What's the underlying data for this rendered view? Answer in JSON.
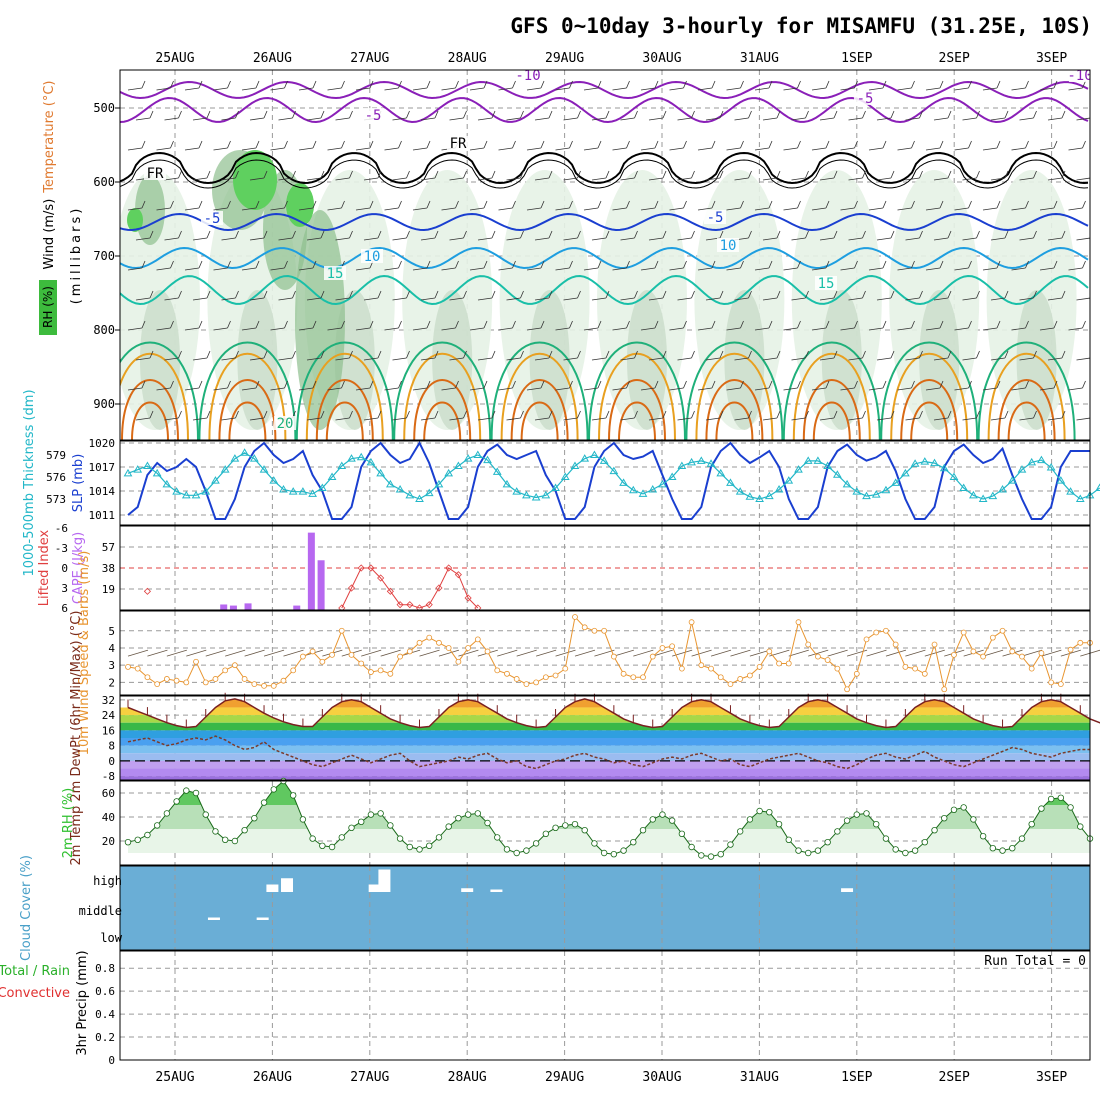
{
  "title": "GFS 0~10day 3-hourly for MISAMFU (31.25E, 10S)",
  "colors": {
    "purple": "#8a1fb8",
    "black": "#000000",
    "blue_dark": "#1a3fd0",
    "blue_light": "#1e9ee0",
    "teal": "#19bfa8",
    "green": "#1fb07a",
    "orange": "#e8a020",
    "orange_dark": "#d96a15",
    "cyan": "#22b7c8",
    "cape": "#b768f0",
    "li": "#e04040",
    "wind": "#e89530",
    "rh": "#30c030",
    "cloud": "#6aaed6",
    "grid": "#9a9a9a"
  },
  "chart_data": {
    "type": "meteogram",
    "x_labels": [
      "25AUG",
      "26AUG",
      "27AUG",
      "28AUG",
      "29AUG",
      "30AUG",
      "31AUG",
      "1SEP",
      "2SEP",
      "3SEP"
    ],
    "panels": [
      {
        "id": "upper",
        "type": "contour",
        "ylabel": "(millibars)",
        "side_labels": [
          "Wind (m/s)",
          "Temperature (°C)",
          "RH (%)"
        ],
        "y_ticks": [
          "500",
          "600",
          "700",
          "800",
          "900"
        ],
        "contour_labels": [
          "-10",
          "-5",
          "-5",
          "FR",
          "FR",
          "-5",
          "-5",
          "10",
          "10",
          "15",
          "15",
          "20",
          "-10"
        ]
      },
      {
        "id": "thickness_slp",
        "type": "line",
        "ylabel_left": "1000-500mb Thickness (dm)",
        "ylabel_right": "SLP (mb)",
        "y_ticks_left": [
          "579",
          "576",
          "573"
        ],
        "y_ticks_right": [
          "1020",
          "1017",
          "1014",
          "1011"
        ],
        "series": [
          {
            "name": "SLP",
            "values": [
              1011,
              1012,
              1016,
              1017.5,
              1016.5,
              1017,
              1018,
              1017,
              1014,
              1010.5,
              1010.5,
              1013,
              1017,
              1019,
              1020,
              1018.5,
              1017.5,
              1018,
              1019,
              1016,
              1014,
              1010.5,
              1010.5,
              1012,
              1017,
              1019,
              1020,
              1018.5,
              1017.5,
              1018,
              1020,
              1017.5,
              1014,
              1010.5,
              1010.5,
              1012,
              1017,
              1019,
              1019.8,
              1018.5,
              1018,
              1018.5,
              1019,
              1016,
              1014,
              1010.5,
              1010.5,
              1012,
              1017,
              1019,
              1020,
              1018.5,
              1018,
              1018.3,
              1019,
              1016,
              1013,
              1010.5,
              1010.5,
              1012,
              1017,
              1019,
              1020,
              1018.5,
              1017.5,
              1018.2,
              1019,
              1017,
              1013,
              1010.5,
              1010.5,
              1012,
              1017,
              1019,
              1019.8,
              1018.5,
              1017.8,
              1018.2,
              1019,
              1016.5,
              1013,
              1010.5,
              1010.5,
              1012,
              1017,
              1019,
              1019.8,
              1018.5,
              1017.5,
              1018,
              1019.3,
              1016,
              1013,
              1010.5,
              1010.5,
              1012,
              1017,
              1019,
              1019,
              1019
            ]
          },
          {
            "name": "Thickness",
            "values": [
              576.5,
              577,
              577.5,
              576.5,
              575,
              574,
              573.5,
              573.5,
              574,
              575.5,
              577,
              578.5,
              579.3,
              578.5,
              577,
              575.5,
              574.3,
              574,
              574,
              573.7,
              574.5,
              576,
              577.5,
              578.5,
              578.7,
              578,
              576.5,
              575,
              574.3,
              573.5,
              573,
              573.8,
              575,
              576.5,
              577.5,
              578.5,
              579,
              578.3,
              576.7,
              575,
              574,
              573.5,
              573.2,
              573.5,
              574.5,
              576,
              577.5,
              578.5,
              579,
              578.2,
              576.8,
              575.2,
              574.2,
              573.7,
              574.3,
              575,
              576,
              577.5,
              578,
              578.2,
              577.8,
              576.5,
              575.2,
              574,
              573.3,
              573,
              573.4,
              574.3,
              575.5,
              577,
              578.2,
              578.2,
              577.5,
              576.3,
              575,
              574,
              573.4,
              573.6,
              574.2,
              575.2,
              576.5,
              577.8,
              578.1,
              577.9,
              577.2,
              576,
              574.5,
              573.5,
              573,
              573.4,
              574.3,
              575.5,
              577,
              578,
              578.3,
              577.3,
              575.5,
              574,
              573,
              573.5,
              574.5
            ]
          }
        ]
      },
      {
        "id": "li_cape",
        "type": "bar+line",
        "ylabel_left": "Lifted Index",
        "ylabel_right": "CAPE (J/kg)",
        "y_ticks_left": [
          "-6",
          "-3",
          "0",
          "3",
          "6"
        ],
        "y_ticks_right": [
          "57",
          "38",
          "19"
        ],
        "cape_bars": [
          {
            "day_index": 1.5,
            "value": 5
          },
          {
            "day_index": 1.6,
            "value": 4
          },
          {
            "day_index": 1.75,
            "value": 6
          },
          {
            "day_index": 2.25,
            "value": 4
          },
          {
            "day_index": 2.4,
            "value": 70
          },
          {
            "day_index": 2.5,
            "value": 45
          }
        ],
        "li_line": [
          null,
          null,
          3.5,
          null,
          null,
          null,
          null,
          null,
          null,
          null,
          null,
          null,
          null,
          null,
          null,
          null,
          null,
          null,
          null,
          null,
          null,
          null,
          6,
          3,
          0,
          0,
          1.5,
          3.5,
          5.5,
          5.5,
          6,
          5.5,
          3,
          0,
          1,
          4.5,
          6,
          null,
          null,
          null,
          null,
          null,
          null,
          null,
          null,
          null,
          null,
          null,
          null,
          null,
          null,
          null,
          null,
          null,
          null,
          null,
          null,
          null,
          null,
          null,
          null,
          null,
          null,
          null,
          null,
          null,
          null,
          null,
          null,
          null,
          null,
          null,
          null,
          null,
          null,
          null,
          null,
          null,
          null,
          null,
          null,
          null,
          null,
          null,
          null,
          null,
          null,
          null,
          null,
          null,
          null,
          null,
          null,
          null,
          null,
          null,
          null,
          null,
          null,
          null,
          null,
          null,
          null,
          null,
          5,
          6
        ]
      },
      {
        "id": "wind10m",
        "type": "line",
        "ylabel": "10m Wind Speed & Barbs (m/s)",
        "y_ticks": [
          "5",
          "4",
          "3",
          "2"
        ],
        "values": [
          2.9,
          2.8,
          2.3,
          1.9,
          2.2,
          2.1,
          2.0,
          3.2,
          2.0,
          2.2,
          2.7,
          3.0,
          2.2,
          1.9,
          1.8,
          1.8,
          2.1,
          2.7,
          3.5,
          3.8,
          3.2,
          3.6,
          5.0,
          3.6,
          3.1,
          2.6,
          2.7,
          2.5,
          3.5,
          3.8,
          4.3,
          4.6,
          4.3,
          4.0,
          3.2,
          4.0,
          4.5,
          3.8,
          2.7,
          2.5,
          2.2,
          1.9,
          2.0,
          2.3,
          2.4,
          2.8,
          5.8,
          5.2,
          5.0,
          5.0,
          3.5,
          2.5,
          2.3,
          2.3,
          3.5,
          4.0,
          4.1,
          2.8,
          5.5,
          3.0,
          2.8,
          2.3,
          1.9,
          2.2,
          2.4,
          2.9,
          3.8,
          3.1,
          3.1,
          5.5,
          4.2,
          3.5,
          3.3,
          2.8,
          1.6,
          2.5,
          4.5,
          4.9,
          5.0,
          4.2,
          2.9,
          2.8,
          2.5,
          4.2,
          1.6,
          3.6,
          4.9,
          3.8,
          3.5,
          4.6,
          5.0,
          3.8,
          3.5,
          2.8,
          3.7,
          2.0,
          1.9,
          3.9,
          4.3,
          4.3
        ]
      },
      {
        "id": "temp2m",
        "type": "area",
        "ylabel": "2m Temp 2m DewPt (6hr Min/Max) (°C)",
        "y_ticks": [
          "32",
          "24",
          "16",
          "8",
          "0",
          "-8"
        ],
        "temp": [
          28,
          26,
          24,
          22,
          20,
          18.5,
          17.5,
          18,
          23,
          28,
          31.5,
          32.5,
          31,
          28,
          25,
          22.5,
          20.5,
          19,
          18,
          18,
          23,
          28,
          31,
          32,
          31,
          28,
          25,
          22,
          20,
          18.5,
          17.5,
          18,
          23,
          28,
          31,
          32,
          31,
          28,
          25,
          22,
          20,
          18.5,
          17.5,
          18,
          23,
          28,
          31,
          32.5,
          31,
          28,
          25,
          22,
          20,
          18.5,
          17.5,
          18,
          23,
          28,
          31,
          32,
          31,
          28,
          25,
          22,
          20,
          18.5,
          17.5,
          18,
          23,
          28,
          31,
          32,
          31,
          28,
          25,
          22,
          20,
          18.5,
          17.5,
          18,
          23,
          28,
          31,
          32,
          31,
          28,
          25,
          22,
          20,
          18.5,
          17.5,
          18,
          23,
          28,
          31,
          32,
          31,
          28,
          25,
          22,
          20,
          18.5,
          17.5,
          19
        ],
        "dewpt": [
          10,
          11,
          12,
          10,
          8,
          9,
          11,
          12,
          11,
          13,
          11,
          8,
          6,
          7,
          10,
          6,
          4,
          2,
          0,
          -2,
          -3,
          -1,
          1,
          3,
          1,
          -1,
          1,
          3,
          4,
          0,
          -3,
          -2,
          -1,
          0,
          2,
          1,
          3,
          4,
          1,
          -1,
          0,
          -3,
          -4,
          -2,
          0,
          1,
          3,
          4,
          2,
          1,
          -1,
          0,
          -2,
          -3,
          -1,
          1,
          2,
          1,
          3,
          4,
          2,
          0,
          1,
          -2,
          -3,
          -1,
          1,
          2,
          3,
          4,
          2,
          0,
          -1,
          -3,
          -4,
          -2,
          1,
          3,
          4,
          2,
          1,
          3,
          5,
          2,
          0,
          -2,
          -3,
          -1,
          1,
          3,
          5,
          7,
          6,
          4,
          3,
          2,
          4,
          5,
          6,
          6
        ]
      },
      {
        "id": "rh2m",
        "type": "area",
        "ylabel": "2m RH (%)",
        "y_ticks": [
          "60",
          "40",
          "20"
        ],
        "values": [
          19,
          21,
          25,
          33,
          43,
          53,
          62,
          60,
          42,
          28,
          21,
          20,
          29,
          39,
          52,
          63,
          70,
          58,
          38,
          22,
          16,
          15,
          23,
          31,
          36,
          42,
          43,
          33,
          22,
          15,
          13,
          16,
          23,
          32,
          39,
          42,
          43,
          35,
          23,
          13,
          10,
          12,
          18,
          26,
          31,
          33,
          34,
          29,
          18,
          10,
          9,
          12,
          19,
          29,
          38,
          42,
          37,
          26,
          15,
          8,
          7,
          9,
          17,
          28,
          38,
          45,
          44,
          34,
          21,
          12,
          10,
          12,
          19,
          28,
          37,
          42,
          43,
          34,
          22,
          13,
          10,
          12,
          19,
          29,
          39,
          46,
          48,
          38,
          24,
          14,
          12,
          14,
          22,
          34,
          47,
          55,
          56,
          48,
          32,
          22
        ]
      },
      {
        "id": "cloud",
        "type": "bar",
        "ylabel": "Cloud Cover (%)",
        "y_ticks": [
          "high",
          "middle",
          "low"
        ],
        "high_bars": [
          {
            "day_index": 2.0,
            "value": 0.3
          },
          {
            "day_index": 2.15,
            "value": 0.55
          },
          {
            "day_index": 3.05,
            "value": 0.3
          },
          {
            "day_index": 3.15,
            "value": 0.9
          },
          {
            "day_index": 4.0,
            "value": 0.15
          },
          {
            "day_index": 4.3,
            "value": 0.1
          },
          {
            "day_index": 7.9,
            "value": 0.15
          }
        ],
        "middle_bars": [
          {
            "day_index": 1.4,
            "value": 0.1
          },
          {
            "day_index": 1.9,
            "value": 0.1
          }
        ]
      },
      {
        "id": "precip",
        "type": "bar",
        "ylabel": "3hr Precip (mm)",
        "side_labels": [
          "Total / Rain",
          "Convective"
        ],
        "y_ticks": [
          "0.8",
          "0.6",
          "0.4",
          "0.2",
          "0"
        ],
        "run_total_label": "Run Total = 0",
        "values": []
      }
    ]
  }
}
